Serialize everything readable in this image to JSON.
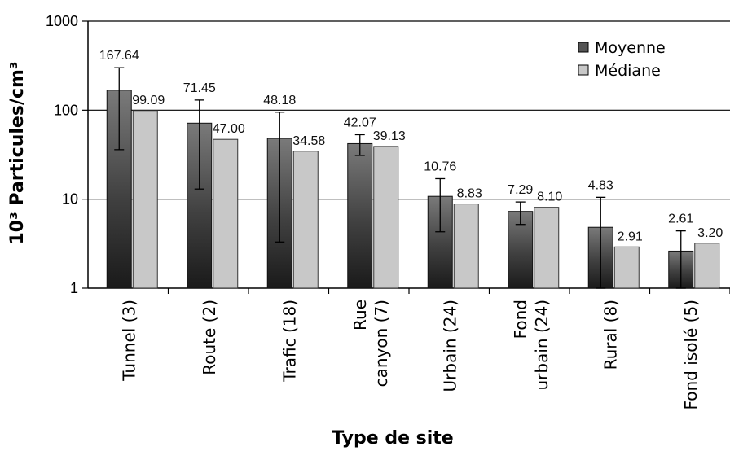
{
  "chart_data": {
    "type": "bar",
    "yscale": "log",
    "ylim": [
      1,
      1000
    ],
    "yticks": [
      "1",
      "10",
      "100",
      "1000"
    ],
    "xlabel": "Type de site",
    "ylabel": "10³ Particules/cm³",
    "legend_position": "top-right",
    "grid": "horizontal major lines at 10, 100, 1000",
    "categories": [
      [
        "Tunnel (3)"
      ],
      [
        "Route (2)"
      ],
      [
        "Trafic (18)"
      ],
      [
        "Rue",
        "canyon (7)"
      ],
      [
        "Urbain (24)"
      ],
      [
        "Fond",
        "urbain (24)"
      ],
      [
        "Rural (8)"
      ],
      [
        "Fond isolé (5)"
      ]
    ],
    "series": [
      {
        "name": "Moyenne",
        "color": "#555555",
        "style": "gradient dark-to-grey",
        "values": [
          167.64,
          71.45,
          48.18,
          42.07,
          10.76,
          7.29,
          4.83,
          2.61
        ],
        "labels": [
          "167.64",
          "71.45",
          "48.18",
          "42.07",
          "10.76",
          "7.29",
          "4.83",
          "2.61"
        ],
        "error_low": [
          36,
          13,
          3.3,
          31,
          4.3,
          5.2,
          1.0,
          1.0
        ],
        "error_high": [
          300,
          130,
          95,
          53,
          17,
          9.3,
          10.5,
          4.4
        ]
      },
      {
        "name": "Médiane",
        "color": "#c8c8c8",
        "values": [
          99.09,
          47.0,
          34.58,
          39.13,
          8.83,
          8.1,
          2.91,
          3.2
        ],
        "labels": [
          "99.09",
          "47.00",
          "34.58",
          "39.13",
          "8.83",
          "8.10",
          "2.91",
          "3.20"
        ]
      }
    ]
  }
}
